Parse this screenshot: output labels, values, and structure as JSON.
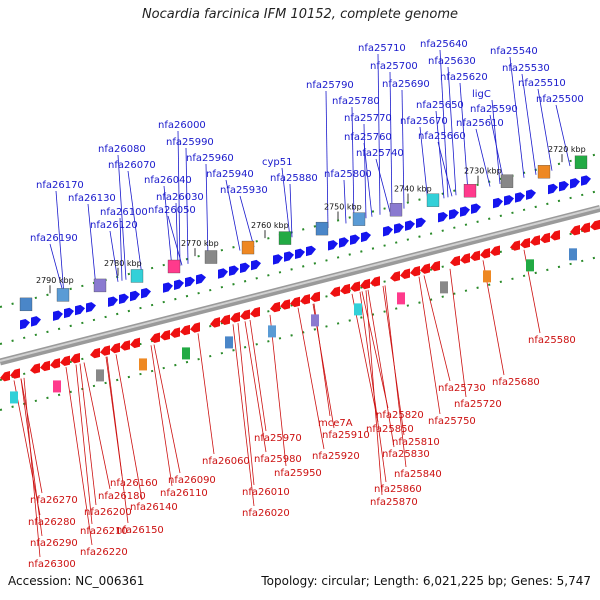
{
  "header": {
    "title": "Nocardia farcinica IFM 10152, complete genome"
  },
  "footer": {
    "accession": "Accession: NC_006361",
    "topology": "Topology: circular; Length: 6,021,225 bp; Genes: 5,747"
  },
  "colors": {
    "forward_gene": "#1515ee",
    "reverse_gene": "#ee1111",
    "forward_label": "#1a1acc",
    "reverse_label": "#cc1111",
    "axis": "#777777",
    "tick_dash": "#2a8a2a"
  },
  "scale": {
    "ticks": [
      "2720 kbp",
      "2730 kbp",
      "2740 kbp",
      "2750 kbp",
      "2760 kbp",
      "2770 kbp",
      "2780 kbp",
      "2790 kbp"
    ]
  },
  "forward_labels": [
    "nfa25710",
    "nfa25640",
    "nfa25540",
    "nfa25700",
    "nfa25630",
    "nfa25530",
    "nfa25690",
    "nfa25620",
    "nfa25510",
    "nfa25790",
    "ligC",
    "nfa25500",
    "nfa25780",
    "nfa25650",
    "nfa25590",
    "nfa25770",
    "nfa25670",
    "nfa25610",
    "nfa26000",
    "nfa25760",
    "nfa25660",
    "nfa25990",
    "nfa26080",
    "nfa25740",
    "nfa25960",
    "cyp51",
    "nfa26070",
    "nfa25800",
    "nfa26040",
    "nfa25940",
    "nfa25880",
    "nfa26170",
    "nfa25930",
    "nfa26030",
    "nfa26130",
    "nfa26050",
    "nfa26100",
    "nfa26120",
    "nfa26190"
  ],
  "reverse_labels": [
    "nfa25580",
    "nfa25680",
    "nfa25730",
    "nfa25720",
    "nfa25750",
    "nfa25820",
    "mce7A",
    "nfa25910",
    "nfa25850",
    "nfa25970",
    "nfa25810",
    "nfa25830",
    "nfa26060",
    "nfa25980",
    "nfa25920",
    "nfa25950",
    "nfa25840",
    "nfa26090",
    "nfa26010",
    "nfa26110",
    "nfa25860",
    "nfa26160",
    "nfa26270",
    "nfa26180",
    "nfa25870",
    "nfa26020",
    "nfa26140",
    "nfa26200",
    "nfa26150",
    "nfa26280",
    "nfa26210",
    "nfa26290",
    "nfa26220",
    "nfa26300"
  ]
}
